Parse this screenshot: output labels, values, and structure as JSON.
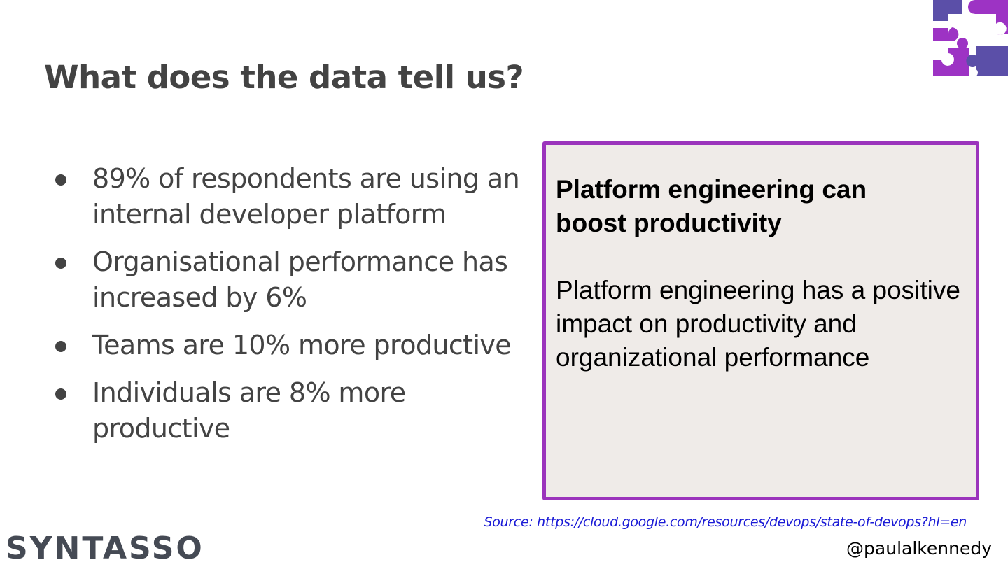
{
  "slide": {
    "title": "What does the data tell us?",
    "bullets": [
      "89% of respondents are using an internal developer platform",
      "Organisational performance has increased by 6%",
      "Teams are 10% more productive",
      "Individuals are 8% more productive"
    ]
  },
  "callout": {
    "heading": "Platform engineering can boost productivity",
    "body": "Platform engineering has a positive impact on productivity and organizational performance"
  },
  "source": "Source: https://cloud.google.com/resources/devops/state-of-devops?hl=en",
  "brand": "SYNTASSO",
  "handle": "@paulalkennedy",
  "logo": {
    "icon": "puzzle-pieces-icon",
    "colors": [
      "#5b4fa8",
      "#9d33c4"
    ]
  },
  "colors": {
    "title": "#434343",
    "callout_border": "#9b34bc",
    "callout_bg": "#efebe8",
    "link": "#1a1ad6"
  }
}
